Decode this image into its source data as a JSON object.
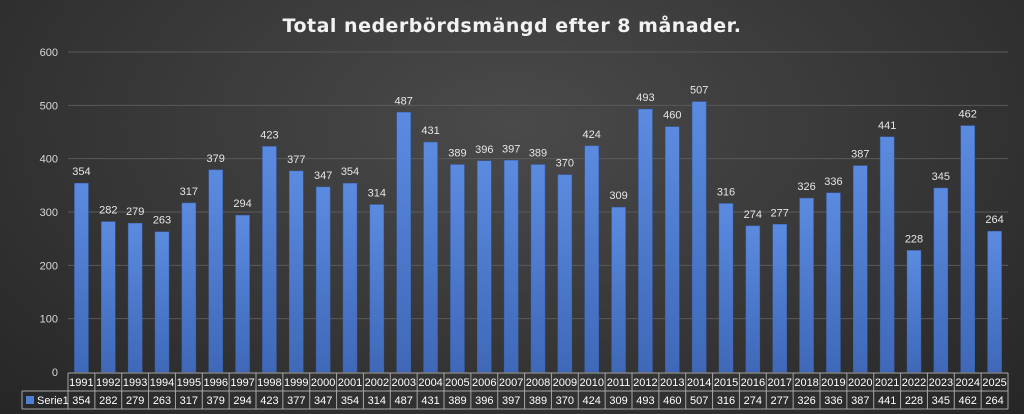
{
  "chart_data": {
    "type": "bar",
    "title": "Total nederbördsmängd efter 8 månader.",
    "xlabel": "",
    "ylabel": "",
    "ylim": [
      0,
      600
    ],
    "yticks": [
      0,
      100,
      200,
      300,
      400,
      500,
      600
    ],
    "categories": [
      "1991",
      "1992",
      "1993",
      "1994",
      "1995",
      "1996",
      "1997",
      "1998",
      "1999",
      "2000",
      "2001",
      "2002",
      "2003",
      "2004",
      "2005",
      "2006",
      "2007",
      "2008",
      "2009",
      "2010",
      "2011",
      "2012",
      "2013",
      "2014",
      "2015",
      "2016",
      "2017",
      "2018",
      "2019",
      "2020",
      "2021",
      "2022",
      "2023",
      "2024",
      "2025"
    ],
    "series": [
      {
        "name": "Serie1",
        "values": [
          354,
          282,
          279,
          263,
          317,
          379,
          294,
          423,
          377,
          347,
          354,
          314,
          487,
          431,
          389,
          396,
          397,
          389,
          370,
          424,
          309,
          493,
          460,
          507,
          316,
          274,
          277,
          326,
          336,
          387,
          441,
          228,
          345,
          462,
          264
        ]
      }
    ],
    "data_table": true,
    "grid": true,
    "bar_color": "#4f7fd6"
  }
}
